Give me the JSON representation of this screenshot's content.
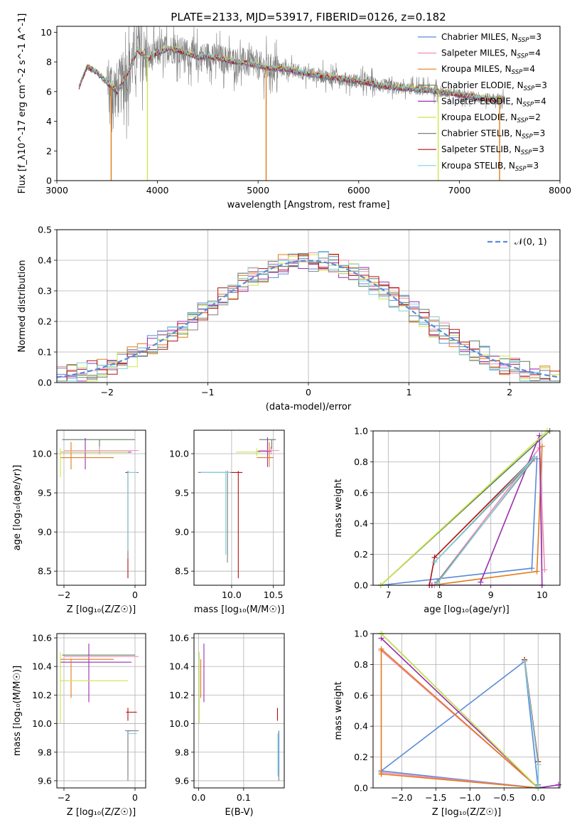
{
  "title": "PLATE=2133, MJD=53917, FIBERID=0126, z=0.182",
  "colors": {
    "Chabrier MILES": "#5b8bd8",
    "Salpeter MILES": "#f08cb4",
    "Kroupa MILES": "#e07b1a",
    "Chabrier ELODIE": "#5f7f5f",
    "Salpeter ELODIE": "#9a2fb0",
    "Kroupa ELODIE": "#c9e84a",
    "Chabrier STELIB": "#7f7f7f",
    "Salpeter STELIB": "#b01212",
    "Kroupa STELIB": "#7fd0d8"
  },
  "chart_data": [
    {
      "id": "spectrum",
      "type": "line",
      "xlabel": "wavelength [Angstrom, rest frame]",
      "ylabel": "Flux [f_λ10^-17 erg cm^-2 s^-1 A^-1]",
      "xlim": [
        3000,
        8000
      ],
      "ylim": [
        0,
        10.4
      ],
      "xticks": [
        3000,
        4000,
        5000,
        6000,
        7000,
        8000
      ],
      "yticks": [
        0,
        2,
        4,
        6,
        8,
        10
      ],
      "grid": false,
      "legend": "top-right",
      "legend_entries": [
        {
          "model": "Chabrier MILES",
          "label": "Chabrier MILES, N",
          "n": "3"
        },
        {
          "model": "Salpeter MILES",
          "label": "Salpeter MILES, N",
          "n": "4"
        },
        {
          "model": "Kroupa MILES",
          "label": "Kroupa MILES, N",
          "n": "4"
        },
        {
          "model": "Chabrier ELODIE",
          "label": "Chabrier ELODIE, N",
          "n": "3"
        },
        {
          "model": "Salpeter ELODIE",
          "label": "Salpeter ELODIE, N",
          "n": "4"
        },
        {
          "model": "Kroupa ELODIE",
          "label": "Kroupa ELODIE, N",
          "n": "2"
        },
        {
          "model": "Chabrier STELIB",
          "label": "Chabrier STELIB, N",
          "n": "3"
        },
        {
          "model": "Salpeter STELIB",
          "label": "Salpeter STELIB, N",
          "n": "3"
        },
        {
          "model": "Kroupa STELIB",
          "label": "Kroupa STELIB, N",
          "n": "3"
        }
      ],
      "legend_subscript": "SSP",
      "continuum": {
        "x": [
          3220,
          3300,
          3400,
          3500,
          3600,
          3700,
          3800,
          3900,
          4000,
          4100,
          4200,
          4300,
          4400,
          4500,
          4700,
          4900,
          5100,
          5300,
          5500,
          5700,
          5900,
          6100,
          6300,
          6500,
          6700,
          6900,
          7100,
          7300,
          7450
        ],
        "y": [
          6.3,
          7.7,
          7.3,
          6.6,
          6.0,
          7.2,
          8.8,
          8.2,
          8.6,
          8.9,
          8.8,
          8.6,
          8.3,
          8.4,
          8.1,
          7.9,
          7.6,
          7.5,
          7.2,
          7.0,
          6.8,
          6.6,
          6.3,
          6.2,
          6.1,
          5.9,
          5.7,
          5.5,
          5.5
        ]
      },
      "noisy_ranges": [
        [
          3500,
          3900,
          2.0
        ],
        [
          3900,
          5200,
          1.0
        ],
        [
          5200,
          6400,
          0.5
        ],
        [
          6400,
          7450,
          0.4
        ]
      ],
      "spikes": [
        {
          "x": 3540,
          "model": "Kroupa MILES"
        },
        {
          "x": 3900,
          "model": "Kroupa ELODIE"
        },
        {
          "x": 5080,
          "model": "Kroupa MILES"
        },
        {
          "x": 6790,
          "model": "Kroupa ELODIE"
        },
        {
          "x": 7400,
          "model": "Kroupa MILES"
        }
      ]
    },
    {
      "id": "residuals",
      "type": "histogram",
      "xlabel": "(data-model)/error",
      "ylabel": "Normed distribution",
      "xlim": [
        -2.5,
        2.5
      ],
      "ylim": [
        0,
        0.5
      ],
      "xticks": [
        -2,
        -1,
        0,
        1,
        2
      ],
      "yticks": [
        0.0,
        0.1,
        0.2,
        0.3,
        0.4,
        0.5
      ],
      "grid": true,
      "bin_width": 0.1,
      "legend": "top-right",
      "legend_label": "𝒩(0, 1)",
      "normal_pdf": {
        "mu": 0,
        "sigma": 1
      }
    },
    {
      "id": "age_vs_Z",
      "type": "errorbar",
      "xlabel": "Z [log₁₀(Z/Z☉)]",
      "ylabel": "age  [log₁₀(age/yr)]",
      "xlim": [
        -2.2,
        0.3
      ],
      "ylim": [
        8.32,
        10.3
      ],
      "xticks": [
        -2,
        0
      ],
      "yticks": [
        8.5,
        9.0,
        9.5,
        10.0
      ],
      "grid": true,
      "points": [
        {
          "model": "Chabrier MILES",
          "x": -0.2,
          "xerr": [
            0.08,
            0.1
          ],
          "y": 9.76,
          "yerr": [
            1.0,
            0.02
          ]
        },
        {
          "model": "Chabrier ELODIE",
          "x": -1.0,
          "xerr": [
            1.05,
            1.0
          ],
          "y": 10.18,
          "yerr": [
            0.12,
            0.0
          ]
        },
        {
          "model": "Salpeter ELODIE",
          "x": -1.4,
          "xerr": [
            0.7,
            1.3
          ],
          "y": 10.02,
          "yerr": [
            0.22,
            0.18
          ]
        },
        {
          "model": "Kroupa MILES",
          "x": -1.8,
          "xerr": [
            0.3,
            1.2
          ],
          "y": 9.95,
          "yerr": [
            0.15,
            0.2
          ]
        },
        {
          "model": "Kroupa ELODIE",
          "x": -2.1,
          "xerr": [
            0.0,
            1.9
          ],
          "y": 10.02,
          "yerr": [
            0.32,
            0.05
          ]
        },
        {
          "model": "Salpeter MILES",
          "x": -1.0,
          "xerr": [
            1.0,
            1.1
          ],
          "y": 10.04,
          "yerr": [
            0.05,
            0.05
          ]
        },
        {
          "model": "Salpeter STELIB",
          "x": -0.2,
          "xerr": [
            0.05,
            0.05
          ],
          "y": 9.76,
          "yerr": [
            1.35,
            0.02
          ]
        },
        {
          "model": "Chabrier STELIB",
          "x": -0.2,
          "xerr": [
            0.0,
            0.3
          ],
          "y": 9.76,
          "yerr": [
            1.1,
            0.02
          ]
        },
        {
          "model": "Kroupa STELIB",
          "x": -0.2,
          "xerr": [
            0.0,
            0.25
          ],
          "y": 9.76,
          "yerr": [
            1.0,
            0.02
          ]
        }
      ]
    },
    {
      "id": "age_vs_mass",
      "type": "errorbar",
      "xlabel": "mass [log₁₀(M/M☉)]",
      "ylabel": "",
      "xlim": [
        9.55,
        10.63
      ],
      "ylim": [
        8.32,
        10.3
      ],
      "xticks": [
        10.0,
        10.5
      ],
      "yticks": [
        8.5,
        9.0,
        9.5,
        10.0
      ],
      "grid": true,
      "points": [
        {
          "model": "Chabrier MILES",
          "x": 9.95,
          "xerr": [
            0.35,
            0.0
          ],
          "y": 9.76,
          "yerr": [
            1.05,
            0.02
          ]
        },
        {
          "model": "Salpeter STELIB",
          "x": 10.08,
          "xerr": [
            0.1,
            0.05
          ],
          "y": 9.76,
          "yerr": [
            1.35,
            0.02
          ]
        },
        {
          "model": "Chabrier STELIB",
          "x": 9.95,
          "xerr": [
            0.35,
            0.05
          ],
          "y": 9.76,
          "yerr": [
            1.15,
            0.02
          ]
        },
        {
          "model": "Kroupa STELIB",
          "x": 9.93,
          "xerr": [
            0.3,
            0.05
          ],
          "y": 9.76,
          "yerr": [
            1.05,
            0.02
          ]
        },
        {
          "model": "Chabrier ELODIE",
          "x": 10.48,
          "xerr": [
            0.15,
            0.05
          ],
          "y": 10.18,
          "yerr": [
            0.12,
            0.0
          ]
        },
        {
          "model": "Salpeter ELODIE",
          "x": 10.43,
          "xerr": [
            0.12,
            0.05
          ],
          "y": 10.03,
          "yerr": [
            0.2,
            0.18
          ]
        },
        {
          "model": "Kroupa MILES",
          "x": 10.45,
          "xerr": [
            0.15,
            0.05
          ],
          "y": 9.95,
          "yerr": [
            0.12,
            0.2
          ]
        },
        {
          "model": "Kroupa ELODIE",
          "x": 10.3,
          "xerr": [
            0.25,
            0.05
          ],
          "y": 10.02,
          "yerr": [
            0.05,
            0.05
          ]
        },
        {
          "model": "Salpeter MILES",
          "x": 10.47,
          "xerr": [
            0.15,
            0.1
          ],
          "y": 10.04,
          "yerr": [
            0.05,
            0.05
          ]
        }
      ]
    },
    {
      "id": "massweight_vs_age",
      "type": "line",
      "xlabel": "age  [log₁₀(age/yr)]",
      "ylabel": "mass weight",
      "xlim": [
        6.7,
        10.35
      ],
      "ylim": [
        0,
        1
      ],
      "xticks": [
        7,
        8,
        9,
        10
      ],
      "yticks": [
        0.0,
        0.2,
        0.4,
        0.6,
        0.8,
        1.0
      ],
      "grid": true,
      "series": [
        {
          "model": "Chabrier MILES",
          "x": [
            6.85,
            9.8,
            9.9
          ],
          "y": [
            0.0,
            0.11,
            0.82
          ]
        },
        {
          "model": "Salpeter MILES",
          "x": [
            7.9,
            9.95,
            10.05
          ],
          "y": [
            0.0,
            0.89,
            0.1
          ]
        },
        {
          "model": "Kroupa MILES",
          "x": [
            7.85,
            9.9,
            10.0
          ],
          "y": [
            0.0,
            0.09,
            0.9
          ]
        },
        {
          "model": "Chabrier ELODIE",
          "x": [
            6.85,
            10.15
          ],
          "y": [
            0.0,
            1.0
          ]
        },
        {
          "model": "Salpeter ELODIE",
          "x": [
            8.8,
            9.95,
            10.0,
            7.85
          ],
          "y": [
            0.02,
            0.97,
            0.0,
            0.0
          ]
        },
        {
          "model": "Kroupa ELODIE",
          "x": [
            6.85,
            10.1
          ],
          "y": [
            0.0,
            1.0
          ]
        },
        {
          "model": "Chabrier STELIB",
          "x": [
            7.9,
            9.85,
            7.95
          ],
          "y": [
            0.15,
            0.82,
            0.02
          ]
        },
        {
          "model": "Salpeter STELIB",
          "x": [
            7.8,
            7.9,
            9.85
          ],
          "y": [
            0.0,
            0.18,
            0.83
          ]
        },
        {
          "model": "Kroupa STELIB",
          "x": [
            7.95,
            9.85,
            7.9
          ],
          "y": [
            0.01,
            0.83,
            0.15
          ]
        }
      ]
    },
    {
      "id": "mass_vs_Z",
      "type": "errorbar",
      "xlabel": "Z [log₁₀(Z/Z☉)]",
      "ylabel": "mass [log₁₀(M/M☉)]",
      "xlim": [
        -2.2,
        0.3
      ],
      "ylim": [
        9.55,
        10.63
      ],
      "xticks": [
        -2,
        0
      ],
      "yticks": [
        9.6,
        9.8,
        10.0,
        10.2,
        10.4,
        10.6
      ],
      "grid": true,
      "points": [
        {
          "model": "Chabrier MILES",
          "x": -0.2,
          "xerr": [
            0.08,
            0.1
          ],
          "y": 9.95,
          "yerr": [
            0.3,
            0.0
          ]
        },
        {
          "model": "Chabrier ELODIE",
          "x": -1.0,
          "xerr": [
            1.05,
            1.0
          ],
          "y": 10.48,
          "yerr": [
            0.0,
            0.0
          ]
        },
        {
          "model": "Salpeter ELODIE",
          "x": -1.3,
          "xerr": [
            0.8,
            1.2
          ],
          "y": 10.43,
          "yerr": [
            0.28,
            0.13
          ]
        },
        {
          "model": "Kroupa MILES",
          "x": -1.8,
          "xerr": [
            0.3,
            1.2
          ],
          "y": 10.45,
          "yerr": [
            0.27,
            0.0
          ]
        },
        {
          "model": "Kroupa ELODIE",
          "x": -2.1,
          "xerr": [
            0.0,
            1.9
          ],
          "y": 10.3,
          "yerr": [
            0.3,
            0.2
          ]
        },
        {
          "model": "Salpeter MILES",
          "x": -1.0,
          "xerr": [
            1.0,
            1.1
          ],
          "y": 10.47,
          "yerr": [
            0.0,
            0.0
          ]
        },
        {
          "model": "Salpeter STELIB",
          "x": -0.2,
          "xerr": [
            0.05,
            0.25
          ],
          "y": 10.08,
          "yerr": [
            0.06,
            0.03
          ]
        },
        {
          "model": "Chabrier STELIB",
          "x": -0.2,
          "xerr": [
            0.0,
            0.3
          ],
          "y": 9.95,
          "yerr": [
            0.35,
            0.0
          ]
        },
        {
          "model": "Kroupa STELIB",
          "x": -0.2,
          "xerr": [
            0.0,
            0.25
          ],
          "y": 9.93,
          "yerr": [
            0.0,
            0.0
          ]
        }
      ]
    },
    {
      "id": "mass_vs_EBV",
      "type": "errorbar",
      "xlabel": "E(B-V)",
      "ylabel": "",
      "xlim": [
        -0.01,
        0.19
      ],
      "ylim": [
        9.55,
        10.63
      ],
      "xticks": [
        0.0,
        0.1
      ],
      "yticks": [
        9.6,
        9.8,
        10.0,
        10.2,
        10.4,
        10.6
      ],
      "grid": true,
      "points": [
        {
          "model": "Kroupa ELODIE",
          "x": 0.002,
          "y": 10.3,
          "yerr": [
            0.3,
            0.2
          ]
        },
        {
          "model": "Kroupa MILES",
          "x": 0.005,
          "y": 10.45,
          "yerr": [
            0.27,
            0.0
          ]
        },
        {
          "model": "Salpeter ELODIE",
          "x": 0.012,
          "y": 10.43,
          "yerr": [
            0.28,
            0.13
          ]
        },
        {
          "model": "Chabrier ELODIE",
          "x": 0.01,
          "y": 10.48,
          "yerr": [
            0.0,
            0.0
          ]
        },
        {
          "model": "Salpeter STELIB",
          "x": 0.175,
          "y": 10.08,
          "yerr": [
            0.06,
            0.03
          ]
        },
        {
          "model": "Chabrier STELIB",
          "x": 0.178,
          "y": 9.95,
          "yerr": [
            0.35,
            0.0
          ]
        },
        {
          "model": "Kroupa STELIB",
          "x": 0.176,
          "y": 9.93,
          "yerr": [
            0.3,
            0.0
          ]
        },
        {
          "model": "Chabrier MILES",
          "x": 0.178,
          "y": 9.95,
          "yerr": [
            0.3,
            0.0
          ]
        }
      ]
    },
    {
      "id": "massweight_vs_Z",
      "type": "line",
      "xlabel": "Z [log₁₀(Z/Z☉)]",
      "ylabel": "mass weight",
      "xlim": [
        -2.42,
        0.32
      ],
      "ylim": [
        0,
        1
      ],
      "xticks": [
        -2.0,
        -1.5,
        -1.0,
        -0.5,
        0.0
      ],
      "yticks": [
        0.0,
        0.2,
        0.4,
        0.6,
        0.8,
        1.0
      ],
      "grid": true,
      "series": [
        {
          "model": "Chabrier MILES",
          "x": [
            -2.3,
            -0.0,
            -0.2,
            -2.3
          ],
          "y": [
            0.11,
            0.0,
            0.82,
            0.11
          ]
        },
        {
          "model": "Salpeter MILES",
          "x": [
            -2.3,
            -0.0,
            -2.3
          ],
          "y": [
            0.89,
            0.0,
            0.1
          ]
        },
        {
          "model": "Kroupa MILES",
          "x": [
            -2.3,
            -0.0,
            -2.3,
            -2.3
          ],
          "y": [
            0.09,
            0.0,
            0.9,
            0.09
          ]
        },
        {
          "model": "Chabrier ELODIE",
          "x": [
            -2.3,
            0.0
          ],
          "y": [
            1.0,
            0.0
          ]
        },
        {
          "model": "Salpeter ELODIE",
          "x": [
            -2.3,
            0.0,
            0.3
          ],
          "y": [
            0.97,
            0.0,
            0.02
          ]
        },
        {
          "model": "Kroupa ELODIE",
          "x": [
            -2.3,
            0.0
          ],
          "y": [
            1.0,
            0.0
          ]
        },
        {
          "model": "Chabrier STELIB",
          "x": [
            -0.2,
            0.0,
            0.0
          ],
          "y": [
            0.83,
            0.15,
            0.02
          ]
        },
        {
          "model": "Salpeter STELIB",
          "x": [
            -0.2,
            0.0
          ],
          "y": [
            0.83,
            0.17
          ]
        },
        {
          "model": "Kroupa STELIB",
          "x": [
            -0.2,
            0.0,
            0.0
          ],
          "y": [
            0.82,
            0.15,
            0.01
          ]
        }
      ]
    }
  ]
}
